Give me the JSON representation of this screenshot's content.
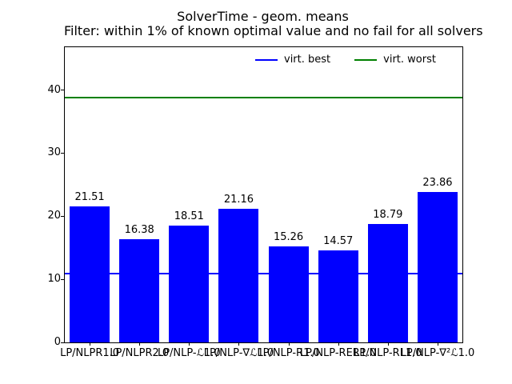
{
  "window": {
    "background": "#ffffff"
  },
  "chart_data": {
    "type": "bar",
    "title_lines": {
      "0": "SolverTime - geom. means",
      "1": "Filter: within 1% of known optimal value and no fail for all solvers"
    },
    "title": "SolverTime - geom. means\nFilter: within 1% of known optimal value and no fail for all solvers",
    "categories": [
      "LP/NLPR1.0",
      "LP/NLPR2.0",
      "LP/NLP-ℒ1.0",
      "LP/NLP-∇ℒ1.0",
      "LP/NLP-R1.0",
      "LP/NLP-RER1.0",
      "LP/NLP-RL1.0",
      "LP/NLP-∇²ℒ1.0"
    ],
    "values": [
      21.51,
      16.38,
      18.51,
      21.16,
      15.26,
      14.57,
      18.79,
      23.86
    ],
    "bar_value_labels": [
      "21.51",
      "16.38",
      "18.51",
      "21.16",
      "15.26",
      "14.57",
      "18.79",
      "23.86"
    ],
    "bar_color": "#0000ff",
    "hlines": [
      {
        "name": "virt. best",
        "value": 10.9,
        "color": "#0000ff"
      },
      {
        "name": "virt. worst",
        "value": 38.8,
        "color": "#008000"
      }
    ],
    "legend": [
      {
        "label": "virt. best",
        "color": "#0000ff"
      },
      {
        "label": "virt. worst",
        "color": "#008000"
      }
    ],
    "xlabel": "",
    "ylabel": "",
    "ylim": [
      0,
      46.8
    ],
    "yticks": [
      0,
      10,
      20,
      30,
      40
    ],
    "grid": false,
    "legend_position": "upper center inside, horizontal",
    "axes_frame": "full box, black spines"
  }
}
